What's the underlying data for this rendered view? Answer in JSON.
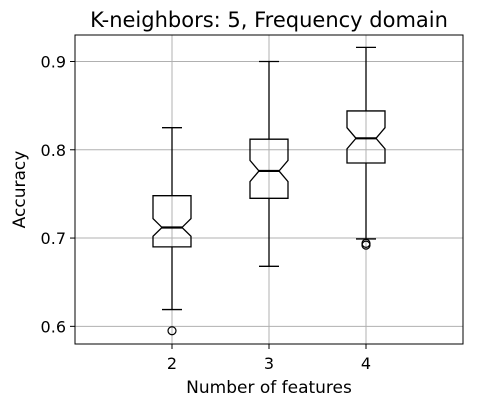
{
  "chart_data": {
    "type": "boxplot",
    "title": "K-neighbors: 5, Frequency domain",
    "xlabel": "Number of features",
    "ylabel": "Accuracy",
    "categories": [
      "2",
      "3",
      "4"
    ],
    "ylim": [
      0.58,
      0.93
    ],
    "yticks": [
      0.6,
      0.7,
      0.8,
      0.9
    ],
    "ytick_labels": [
      "0.6",
      "0.7",
      "0.8",
      "0.9"
    ],
    "grid": true,
    "notched": true,
    "colors": {
      "box": "#000000",
      "grid": "#b0b0b0",
      "background": "#ffffff"
    },
    "boxes": [
      {
        "category": "2",
        "whisker_low": 0.619,
        "q1": 0.69,
        "median": 0.712,
        "q3": 0.748,
        "whisker_high": 0.825,
        "notch_low": 0.702,
        "notch_high": 0.722,
        "outliers": [
          0.595
        ]
      },
      {
        "category": "3",
        "whisker_low": 0.668,
        "q1": 0.745,
        "median": 0.776,
        "q3": 0.812,
        "whisker_high": 0.9,
        "notch_low": 0.764,
        "notch_high": 0.788,
        "outliers": []
      },
      {
        "category": "4",
        "whisker_low": 0.699,
        "q1": 0.785,
        "median": 0.813,
        "q3": 0.844,
        "whisker_high": 0.916,
        "notch_low": 0.801,
        "notch_high": 0.825,
        "outliers": [
          0.694,
          0.692
        ]
      }
    ]
  }
}
